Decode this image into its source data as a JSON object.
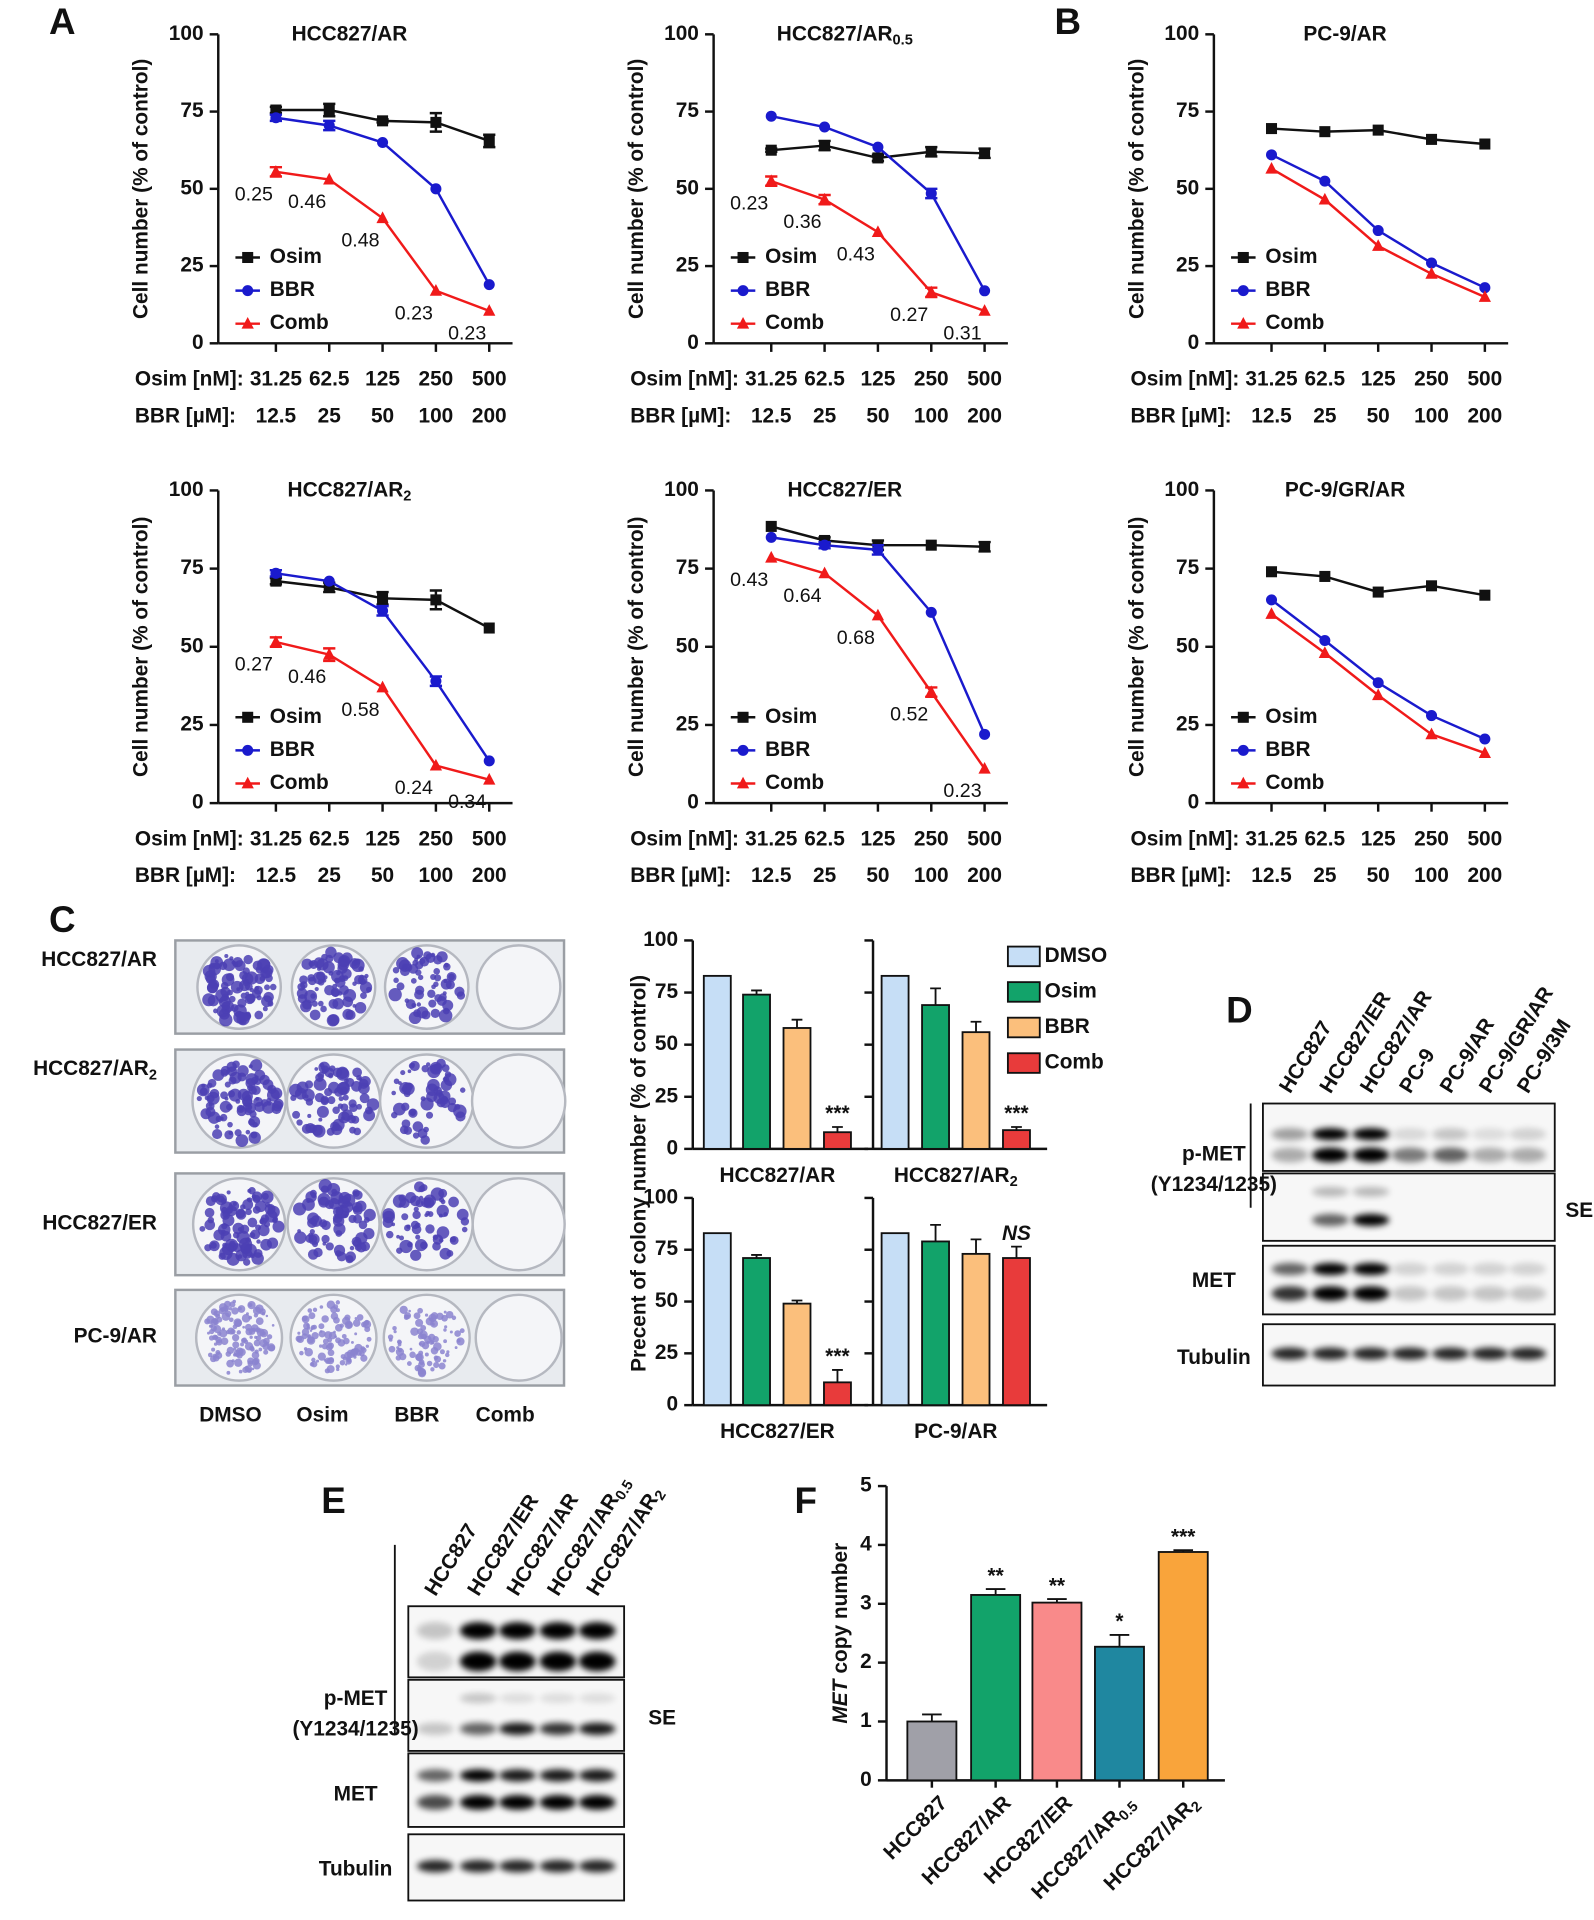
{
  "panel_labels": [
    "A",
    "B",
    "C",
    "D",
    "E",
    "F"
  ],
  "chart_data": [
    {
      "type": "line",
      "title": "HCC827/AR",
      "ylabel": "Cell number (% of control)",
      "xlabel": "Osim [nM]:",
      "xlabel2": "BBR [µM]:",
      "categories": [
        "31.25",
        "62.5",
        "125",
        "250",
        "500"
      ],
      "categories2": [
        "12.5",
        "25",
        "50",
        "100",
        "200"
      ],
      "ylim": [
        0,
        100
      ],
      "yticks": [
        0,
        25,
        50,
        75,
        100
      ],
      "series": [
        {
          "name": "Osim",
          "color": "#111111",
          "marker": "square",
          "values": [
            75.5,
            75.5,
            72,
            71.5,
            65.5
          ],
          "errors": [
            1,
            2,
            0.5,
            3,
            2
          ]
        },
        {
          "name": "BBR",
          "color": "#1a1acd",
          "marker": "circle",
          "values": [
            73,
            70.5,
            65,
            50,
            19
          ],
          "errors": [
            1,
            1.5,
            0,
            0,
            0
          ]
        },
        {
          "name": "Comb",
          "color": "#f01a1a",
          "marker": "triangle",
          "values": [
            55.5,
            53,
            40.5,
            17,
            10.5
          ],
          "errors": [
            1.5,
            0,
            0,
            0,
            0
          ]
        }
      ],
      "annotations": [
        0.25,
        0.46,
        0.48,
        0.23,
        0.23
      ]
    },
    {
      "type": "line",
      "title": "HCC827/AR",
      "title_sub": "0.5",
      "ylabel": "Cell number (% of control)",
      "xlabel": "Osim [nM]:",
      "xlabel2": "BBR [µM]:",
      "categories": [
        "31.25",
        "62.5",
        "125",
        "250",
        "500"
      ],
      "categories2": [
        "12.5",
        "25",
        "50",
        "100",
        "200"
      ],
      "ylim": [
        0,
        100
      ],
      "yticks": [
        0,
        25,
        50,
        75,
        100
      ],
      "series": [
        {
          "name": "Osim",
          "color": "#111111",
          "marker": "square",
          "values": [
            62.5,
            64,
            60,
            62,
            61.5
          ],
          "errors": [
            0.5,
            1.5,
            1,
            1.5,
            1.5
          ]
        },
        {
          "name": "BBR",
          "color": "#1a1acd",
          "marker": "circle",
          "values": [
            73.5,
            70,
            63.5,
            48.5,
            17
          ],
          "errors": [
            0,
            0,
            0,
            1.5,
            0
          ]
        },
        {
          "name": "Comb",
          "color": "#f01a1a",
          "marker": "triangle",
          "values": [
            52.5,
            46.5,
            36,
            16.5,
            10.5
          ],
          "errors": [
            1.5,
            1.5,
            0,
            1.5,
            0
          ]
        }
      ],
      "annotations": [
        0.23,
        0.36,
        0.43,
        0.27,
        0.31
      ]
    },
    {
      "type": "line",
      "title": "PC-9/AR",
      "ylabel": "Cell number (% of control)",
      "xlabel": "Osim [nM]:",
      "xlabel2": "BBR [µM]:",
      "categories": [
        "31.25",
        "62.5",
        "125",
        "250",
        "500"
      ],
      "categories2": [
        "12.5",
        "25",
        "50",
        "100",
        "200"
      ],
      "ylim": [
        0,
        100
      ],
      "yticks": [
        0,
        25,
        50,
        75,
        100
      ],
      "series": [
        {
          "name": "Osim",
          "color": "#111111",
          "marker": "square",
          "values": [
            69.5,
            68.5,
            69,
            66,
            64.5
          ]
        },
        {
          "name": "BBR",
          "color": "#1a1acd",
          "marker": "circle",
          "values": [
            61,
            52.5,
            36.5,
            26,
            18
          ]
        },
        {
          "name": "Comb",
          "color": "#f01a1a",
          "marker": "triangle",
          "values": [
            56.5,
            46.5,
            31.5,
            22.5,
            15
          ]
        }
      ]
    },
    {
      "type": "line",
      "title": "HCC827/AR",
      "title_sub": "2",
      "ylabel": "Cell number (% of control)",
      "xlabel": "Osim [nM]:",
      "xlabel2": "BBR [µM]:",
      "categories": [
        "31.25",
        "62.5",
        "125",
        "250",
        "500"
      ],
      "categories2": [
        "12.5",
        "25",
        "50",
        "100",
        "200"
      ],
      "ylim": [
        0,
        100
      ],
      "yticks": [
        0,
        25,
        50,
        75,
        100
      ],
      "series": [
        {
          "name": "Osim",
          "color": "#111111",
          "marker": "square",
          "values": [
            71,
            69,
            65.5,
            65,
            56
          ],
          "errors": [
            1,
            1.5,
            2,
            3,
            0
          ]
        },
        {
          "name": "BBR",
          "color": "#1a1acd",
          "marker": "circle",
          "values": [
            73.5,
            71,
            61.5,
            39,
            13.5
          ],
          "errors": [
            1,
            0,
            1.5,
            1.5,
            0
          ]
        },
        {
          "name": "Comb",
          "color": "#f01a1a",
          "marker": "triangle",
          "values": [
            51.5,
            47.5,
            37,
            12,
            7.5
          ],
          "errors": [
            1.5,
            2,
            0,
            0,
            0
          ]
        }
      ],
      "annotations": [
        0.27,
        0.46,
        0.58,
        0.24,
        0.34
      ]
    },
    {
      "type": "line",
      "title": "HCC827/ER",
      "ylabel": "Cell number (% of control)",
      "xlabel": "Osim [nM]:",
      "xlabel2": "BBR [µM]:",
      "categories": [
        "31.25",
        "62.5",
        "125",
        "250",
        "500"
      ],
      "categories2": [
        "12.5",
        "25",
        "50",
        "100",
        "200"
      ],
      "ylim": [
        0,
        100
      ],
      "yticks": [
        0,
        25,
        50,
        75,
        100
      ],
      "series": [
        {
          "name": "Osim",
          "color": "#111111",
          "marker": "square",
          "values": [
            88.5,
            84,
            82.5,
            82.5,
            82
          ],
          "errors": [
            0,
            1,
            1.5,
            0,
            1.5
          ]
        },
        {
          "name": "BBR",
          "color": "#1a1acd",
          "marker": "circle",
          "values": [
            85,
            82.5,
            81,
            61,
            22
          ],
          "errors": [
            0,
            1,
            1.5,
            0,
            0
          ]
        },
        {
          "name": "Comb",
          "color": "#f01a1a",
          "marker": "triangle",
          "values": [
            78.5,
            73.5,
            60,
            35.5,
            11
          ],
          "errors": [
            0,
            0,
            0,
            1.5,
            0
          ]
        }
      ],
      "annotations": [
        0.43,
        0.64,
        0.68,
        0.52,
        0.23
      ]
    },
    {
      "type": "line",
      "title": "PC-9/GR/AR",
      "ylabel": "Cell number (% of control)",
      "xlabel": "Osim [nM]:",
      "xlabel2": "BBR [µM]:",
      "categories": [
        "31.25",
        "62.5",
        "125",
        "250",
        "500"
      ],
      "categories2": [
        "12.5",
        "25",
        "50",
        "100",
        "200"
      ],
      "ylim": [
        0,
        100
      ],
      "yticks": [
        0,
        25,
        50,
        75,
        100
      ],
      "series": [
        {
          "name": "Osim",
          "color": "#111111",
          "marker": "square",
          "values": [
            74,
            72.5,
            67.5,
            69.5,
            66.5
          ]
        },
        {
          "name": "BBR",
          "color": "#1a1acd",
          "marker": "circle",
          "values": [
            65,
            52,
            38.5,
            28,
            20.5
          ]
        },
        {
          "name": "Comb",
          "color": "#f01a1a",
          "marker": "triangle",
          "values": [
            60.5,
            48,
            34.5,
            22,
            16
          ]
        }
      ]
    },
    {
      "type": "bar",
      "ylabel": "Precent of colony number  (% of control)",
      "xlabel": "HCC827/AR",
      "values": [
        83,
        74,
        58,
        8
      ],
      "errors": [
        0,
        2,
        4,
        2.5
      ],
      "colors": [
        "#c6def6",
        "#12a36a",
        "#fbbf7c",
        "#e83b3b"
      ],
      "ylim": [
        0,
        100
      ],
      "yticks": [
        0,
        25,
        50,
        75,
        100
      ],
      "annotations": [
        null,
        null,
        null,
        "***"
      ]
    },
    {
      "type": "bar",
      "xlabel": "HCC827/AR",
      "xlabel_sub": "2",
      "values": [
        83,
        69,
        56,
        9
      ],
      "errors": [
        0,
        8,
        5,
        1.5
      ],
      "colors": [
        "#c6def6",
        "#12a36a",
        "#fbbf7c",
        "#e83b3b"
      ],
      "legend": [
        "DMSO",
        "Osim",
        "BBR",
        "Comb"
      ],
      "ylim": [
        0,
        100
      ],
      "yticks": [
        0,
        25,
        50,
        75,
        100
      ],
      "tick_labels": false,
      "annotations": [
        null,
        null,
        null,
        "***"
      ]
    },
    {
      "type": "bar",
      "xlabel": "HCC827/ER",
      "values": [
        83,
        71,
        49,
        11
      ],
      "errors": [
        0,
        1.5,
        1.5,
        6
      ],
      "colors": [
        "#c6def6",
        "#12a36a",
        "#fbbf7c",
        "#e83b3b"
      ],
      "ylim": [
        0,
        100
      ],
      "yticks": [
        0,
        25,
        50,
        75,
        100
      ],
      "annotations": [
        null,
        null,
        null,
        "***"
      ]
    },
    {
      "type": "bar",
      "xlabel": "PC-9/AR",
      "values": [
        83,
        79,
        73,
        71
      ],
      "errors": [
        0,
        8,
        7,
        5.5
      ],
      "colors": [
        "#c6def6",
        "#12a36a",
        "#fbbf7c",
        "#e83b3b"
      ],
      "ylim": [
        0,
        100
      ],
      "yticks": [
        0,
        25,
        50,
        75,
        100
      ],
      "tick_labels": false,
      "annotations": [
        null,
        null,
        null,
        "NS"
      ],
      "annotations_italic": true
    },
    {
      "type": "bar",
      "ylabel_italic": "MET",
      "ylabel": "copy number",
      "categories": [
        "HCC827",
        "HCC827/AR",
        "HCC827/ER",
        "HCC827/AR",
        "HCC827/AR"
      ],
      "category_subs": [
        null,
        null,
        null,
        "0.5",
        "2"
      ],
      "values": [
        1.0,
        3.15,
        3.02,
        2.27,
        3.88
      ],
      "errors": [
        0.12,
        0.1,
        0.06,
        0.2,
        0.03
      ],
      "colors": [
        "#a0a0a8",
        "#12a36a",
        "#f98a8a",
        "#1f87a0",
        "#f9a43b"
      ],
      "ylim": [
        0,
        5
      ],
      "yticks": [
        0,
        1,
        2,
        3,
        4,
        5
      ],
      "annotations": [
        null,
        "**",
        "**",
        "*",
        "***"
      ]
    }
  ],
  "colony": {
    "rows": [
      "HCC827/AR",
      "HCC827/AR",
      "HCC827/ER",
      "PC-9/AR"
    ],
    "row_subs": [
      null,
      "2",
      null,
      null
    ],
    "columns": [
      "DMSO",
      "Osim",
      "BBR",
      "Comb"
    ]
  },
  "blot_d": {
    "lanes": [
      "HCC827",
      "HCC827/ER",
      "HCC827/AR",
      "PC-9",
      "PC-9/AR",
      "PC-9/GR/AR",
      "PC-9/3M"
    ],
    "labels": [
      "p-MET",
      "(Y1234/1235)",
      "SE",
      "MET",
      "Tubulin"
    ]
  },
  "blot_e": {
    "lanes": [
      "HCC827",
      "HCC827/ER",
      "HCC827/AR",
      "HCC827/AR",
      "HCC827/AR"
    ],
    "lane_subs": [
      null,
      null,
      null,
      "0.5",
      "2"
    ],
    "labels": [
      "p-MET",
      "(Y1234/1235)",
      "SE",
      "MET",
      "Tubulin"
    ]
  }
}
